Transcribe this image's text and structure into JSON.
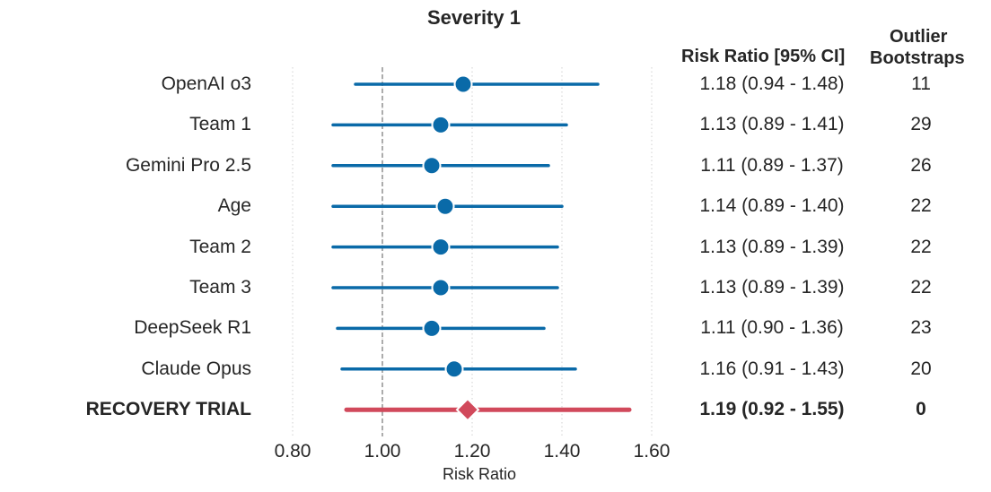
{
  "chart_data": {
    "type": "forest",
    "title": "Severity 1",
    "xlabel": "Risk Ratio",
    "xlim": [
      0.78,
      1.62
    ],
    "xticks": [
      0.8,
      1.0,
      1.2,
      1.4,
      1.6
    ],
    "xtick_labels": [
      "0.80",
      "1.00",
      "1.20",
      "1.40",
      "1.60"
    ],
    "reference_line": 1.0,
    "grid": "vertical dotted",
    "column_headers": {
      "ci": "Risk Ratio [95% CI]",
      "outlier_line1": "Outlier",
      "outlier_line2": "Bootstraps"
    },
    "rows": [
      {
        "label": "OpenAI o3",
        "rr": 1.18,
        "lo": 0.94,
        "hi": 1.48,
        "ci_text": "1.18 (0.94 - 1.48)",
        "outliers": "11",
        "highlight": false
      },
      {
        "label": "Team 1",
        "rr": 1.13,
        "lo": 0.89,
        "hi": 1.41,
        "ci_text": "1.13 (0.89 - 1.41)",
        "outliers": "29",
        "highlight": false
      },
      {
        "label": "Gemini Pro 2.5",
        "rr": 1.11,
        "lo": 0.89,
        "hi": 1.37,
        "ci_text": "1.11 (0.89 - 1.37)",
        "outliers": "26",
        "highlight": false
      },
      {
        "label": "Age",
        "rr": 1.14,
        "lo": 0.89,
        "hi": 1.4,
        "ci_text": "1.14 (0.89 - 1.40)",
        "outliers": "22",
        "highlight": false
      },
      {
        "label": "Team 2",
        "rr": 1.13,
        "lo": 0.89,
        "hi": 1.39,
        "ci_text": "1.13 (0.89 - 1.39)",
        "outliers": "22",
        "highlight": false
      },
      {
        "label": "Team 3",
        "rr": 1.13,
        "lo": 0.89,
        "hi": 1.39,
        "ci_text": "1.13 (0.89 - 1.39)",
        "outliers": "22",
        "highlight": false
      },
      {
        "label": "DeepSeek R1",
        "rr": 1.11,
        "lo": 0.9,
        "hi": 1.36,
        "ci_text": "1.11 (0.90 - 1.36)",
        "outliers": "23",
        "highlight": false
      },
      {
        "label": "Claude Opus",
        "rr": 1.16,
        "lo": 0.91,
        "hi": 1.43,
        "ci_text": "1.16 (0.91 - 1.43)",
        "outliers": "20",
        "highlight": false
      },
      {
        "label": "RECOVERY TRIAL",
        "rr": 1.19,
        "lo": 0.92,
        "hi": 1.55,
        "ci_text": "1.19 (0.92 - 1.55)",
        "outliers": "0",
        "highlight": true
      }
    ],
    "colors": {
      "model": "#0a6aa8",
      "trial": "#d1495b",
      "reference": "#7f7f7f",
      "grid": "#d0d0d0",
      "text": "#262626"
    }
  }
}
